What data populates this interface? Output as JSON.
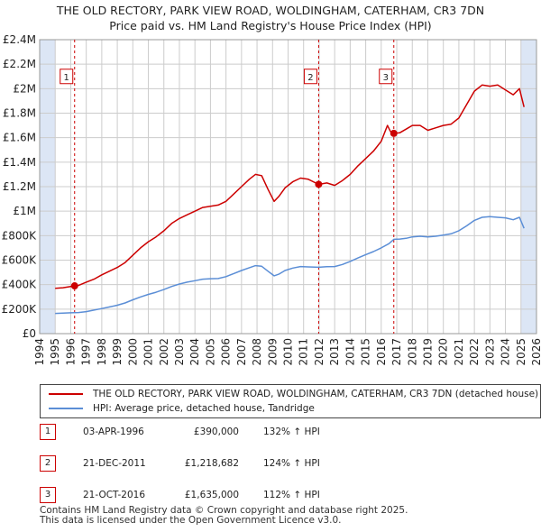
{
  "title": {
    "line1": "THE OLD RECTORY, PARK VIEW ROAD, WOLDINGHAM, CATERHAM, CR3 7DN",
    "line2": "Price paid vs. HM Land Registry's House Price Index (HPI)"
  },
  "colors": {
    "property": "#cc0000",
    "hpi": "#5b8ed6",
    "highlight": "#dce6f5",
    "grid": "#cccccc",
    "marker_border": "#cc0000"
  },
  "chart_data": {
    "type": "line",
    "xlim": [
      1994,
      2026
    ],
    "ylim": [
      0,
      2400000
    ],
    "x_ticks": [
      "1994",
      "1995",
      "1996",
      "1997",
      "1998",
      "1999",
      "2000",
      "2001",
      "2002",
      "2003",
      "2004",
      "2005",
      "2006",
      "2007",
      "2008",
      "2009",
      "2010",
      "2011",
      "2012",
      "2013",
      "2014",
      "2015",
      "2016",
      "2017",
      "2018",
      "2019",
      "2020",
      "2021",
      "2022",
      "2023",
      "2024",
      "2025",
      "2026"
    ],
    "y_ticks": [
      {
        "value": 0,
        "label": "£0"
      },
      {
        "value": 200000,
        "label": "£200K"
      },
      {
        "value": 400000,
        "label": "£400K"
      },
      {
        "value": 600000,
        "label": "£600K"
      },
      {
        "value": 800000,
        "label": "£800K"
      },
      {
        "value": 1000000,
        "label": "£1M"
      },
      {
        "value": 1200000,
        "label": "£1.2M"
      },
      {
        "value": 1400000,
        "label": "£1.4M"
      },
      {
        "value": 1600000,
        "label": "£1.6M"
      },
      {
        "value": 1800000,
        "label": "£1.8M"
      },
      {
        "value": 2000000,
        "label": "£2M"
      },
      {
        "value": 2200000,
        "label": "£2.2M"
      },
      {
        "value": 2400000,
        "label": "£2.4M"
      }
    ],
    "shaded_ranges": [
      [
        1994,
        1995
      ],
      [
        2025,
        2026
      ]
    ],
    "series": [
      {
        "name": "THE OLD RECTORY, PARK VIEW ROAD, WOLDINGHAM, CATERHAM, CR3 7DN (detached house)",
        "color": "#cc0000",
        "points": [
          [
            1995.0,
            370000
          ],
          [
            1995.5,
            375000
          ],
          [
            1996.0,
            385000
          ],
          [
            1996.25,
            390000
          ],
          [
            1996.5,
            393000
          ],
          [
            1997.0,
            420000
          ],
          [
            1997.5,
            445000
          ],
          [
            1998.0,
            480000
          ],
          [
            1998.5,
            510000
          ],
          [
            1999.0,
            540000
          ],
          [
            1999.5,
            580000
          ],
          [
            2000.0,
            640000
          ],
          [
            2000.5,
            700000
          ],
          [
            2001.0,
            750000
          ],
          [
            2001.5,
            790000
          ],
          [
            2002.0,
            840000
          ],
          [
            2002.5,
            900000
          ],
          [
            2003.0,
            940000
          ],
          [
            2003.5,
            970000
          ],
          [
            2004.0,
            1000000
          ],
          [
            2004.5,
            1030000
          ],
          [
            2005.0,
            1040000
          ],
          [
            2005.5,
            1050000
          ],
          [
            2006.0,
            1080000
          ],
          [
            2006.5,
            1140000
          ],
          [
            2007.0,
            1200000
          ],
          [
            2007.5,
            1260000
          ],
          [
            2007.9,
            1300000
          ],
          [
            2008.3,
            1290000
          ],
          [
            2008.7,
            1180000
          ],
          [
            2009.1,
            1080000
          ],
          [
            2009.4,
            1120000
          ],
          [
            2009.8,
            1190000
          ],
          [
            2010.3,
            1240000
          ],
          [
            2010.8,
            1270000
          ],
          [
            2011.3,
            1260000
          ],
          [
            2011.97,
            1218682
          ],
          [
            2012.5,
            1230000
          ],
          [
            2013.0,
            1210000
          ],
          [
            2013.5,
            1250000
          ],
          [
            2014.0,
            1300000
          ],
          [
            2014.5,
            1370000
          ],
          [
            2015.0,
            1430000
          ],
          [
            2015.5,
            1490000
          ],
          [
            2016.0,
            1570000
          ],
          [
            2016.4,
            1700000
          ],
          [
            2016.6,
            1650000
          ],
          [
            2016.81,
            1635000
          ],
          [
            2017.2,
            1640000
          ],
          [
            2017.6,
            1670000
          ],
          [
            2018.0,
            1700000
          ],
          [
            2018.5,
            1700000
          ],
          [
            2019.0,
            1660000
          ],
          [
            2019.5,
            1680000
          ],
          [
            2020.0,
            1700000
          ],
          [
            2020.5,
            1710000
          ],
          [
            2021.0,
            1760000
          ],
          [
            2021.5,
            1870000
          ],
          [
            2022.0,
            1980000
          ],
          [
            2022.5,
            2030000
          ],
          [
            2023.0,
            2020000
          ],
          [
            2023.5,
            2030000
          ],
          [
            2024.0,
            1990000
          ],
          [
            2024.5,
            1950000
          ],
          [
            2024.9,
            2000000
          ],
          [
            2025.2,
            1850000
          ]
        ]
      },
      {
        "name": "HPI: Average price, detached house, Tandridge",
        "color": "#5b8ed6",
        "points": [
          [
            1995.0,
            165000
          ],
          [
            1995.5,
            168000
          ],
          [
            1996.0,
            170000
          ],
          [
            1996.5,
            172000
          ],
          [
            1997.0,
            180000
          ],
          [
            1997.5,
            192000
          ],
          [
            1998.0,
            205000
          ],
          [
            1998.5,
            218000
          ],
          [
            1999.0,
            232000
          ],
          [
            1999.5,
            250000
          ],
          [
            2000.0,
            276000
          ],
          [
            2000.5,
            300000
          ],
          [
            2001.0,
            320000
          ],
          [
            2001.5,
            338000
          ],
          [
            2002.0,
            360000
          ],
          [
            2002.5,
            385000
          ],
          [
            2003.0,
            405000
          ],
          [
            2003.5,
            420000
          ],
          [
            2004.0,
            432000
          ],
          [
            2004.5,
            445000
          ],
          [
            2005.0,
            448000
          ],
          [
            2005.5,
            450000
          ],
          [
            2006.0,
            465000
          ],
          [
            2006.5,
            490000
          ],
          [
            2007.0,
            515000
          ],
          [
            2007.5,
            538000
          ],
          [
            2007.9,
            555000
          ],
          [
            2008.3,
            550000
          ],
          [
            2008.7,
            510000
          ],
          [
            2009.1,
            472000
          ],
          [
            2009.4,
            485000
          ],
          [
            2009.8,
            515000
          ],
          [
            2010.3,
            535000
          ],
          [
            2010.8,
            548000
          ],
          [
            2011.3,
            545000
          ],
          [
            2011.97,
            542000
          ],
          [
            2012.5,
            547000
          ],
          [
            2013.0,
            548000
          ],
          [
            2013.5,
            565000
          ],
          [
            2014.0,
            590000
          ],
          [
            2014.5,
            618000
          ],
          [
            2015.0,
            645000
          ],
          [
            2015.5,
            670000
          ],
          [
            2016.0,
            700000
          ],
          [
            2016.5,
            735000
          ],
          [
            2016.81,
            770000
          ],
          [
            2017.2,
            772000
          ],
          [
            2017.6,
            778000
          ],
          [
            2018.0,
            790000
          ],
          [
            2018.5,
            795000
          ],
          [
            2019.0,
            790000
          ],
          [
            2019.5,
            795000
          ],
          [
            2020.0,
            805000
          ],
          [
            2020.5,
            815000
          ],
          [
            2021.0,
            840000
          ],
          [
            2021.5,
            880000
          ],
          [
            2022.0,
            925000
          ],
          [
            2022.5,
            950000
          ],
          [
            2023.0,
            955000
          ],
          [
            2023.5,
            950000
          ],
          [
            2024.0,
            945000
          ],
          [
            2024.5,
            930000
          ],
          [
            2024.9,
            950000
          ],
          [
            2025.2,
            860000
          ]
        ]
      }
    ],
    "sale_markers": [
      {
        "label": "1",
        "x": 1996.25,
        "y": 390000
      },
      {
        "label": "2",
        "x": 2011.97,
        "y": 1218682
      },
      {
        "label": "3",
        "x": 2016.81,
        "y": 1635000
      }
    ],
    "annotation_box_y": 2100000
  },
  "legend": {
    "property_label": "THE OLD RECTORY, PARK VIEW ROAD, WOLDINGHAM, CATERHAM, CR3 7DN (detached house)",
    "hpi_label": "HPI: Average price, detached house, Tandridge"
  },
  "sales": [
    {
      "num": "1",
      "date": "03-APR-1996",
      "price": "£390,000",
      "hpi": "132% ↑ HPI"
    },
    {
      "num": "2",
      "date": "21-DEC-2011",
      "price": "£1,218,682",
      "hpi": "124% ↑ HPI"
    },
    {
      "num": "3",
      "date": "21-OCT-2016",
      "price": "£1,635,000",
      "hpi": "112% ↑ HPI"
    }
  ],
  "footer": {
    "line1": "Contains HM Land Registry data © Crown copyright and database right 2025.",
    "line2": "This data is licensed under the Open Government Licence v3.0."
  }
}
